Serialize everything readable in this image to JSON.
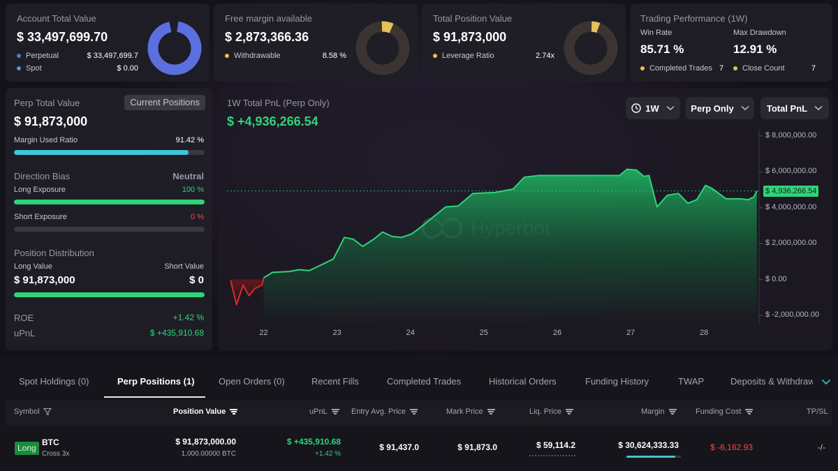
{
  "colors": {
    "accent_blue": "#5b6fe0",
    "accent_yellow": "#e5c15a",
    "green": "#2fd47a",
    "red": "#ff4545",
    "cyan": "#3ec6d6"
  },
  "account": {
    "title": "Account Total Value",
    "value": "$ 33,497,699.70",
    "perp_label": "Perpetual",
    "perp_value": "$ 33,497,699.7",
    "spot_label": "Spot",
    "spot_value": "$ 0.00"
  },
  "margin": {
    "title": "Free margin available",
    "value": "$ 2,873,366.36",
    "withdrawable_label": "Withdrawable",
    "withdrawable_value": "8.58 %"
  },
  "position": {
    "title": "Total Position Value",
    "value": "$ 91,873,000",
    "leverage_label": "Leverage Ratio",
    "leverage_value": "2.74x"
  },
  "performance": {
    "title": "Trading Performance (1W)",
    "win_rate_label": "Win Rate",
    "win_rate": "85.71 %",
    "drawdown_label": "Max Drawdown",
    "drawdown": "12.91 %",
    "completed_label": "Completed Trades",
    "completed": "7",
    "close_label": "Close Count",
    "close": "7"
  },
  "perp": {
    "title": "Perp Total Value",
    "button": "Current Positions",
    "value": "$ 91,873,000",
    "margin_used_label": "Margin Used Ratio",
    "margin_used": "91.42 %",
    "margin_used_pct": 91.42,
    "direction_label": "Direction Bias",
    "direction": "Neutral",
    "long_label": "Long Exposure",
    "long": "100 %",
    "long_pct": 100,
    "short_label": "Short Exposure",
    "short": "0 %",
    "short_pct": 0,
    "dist_label": "Position Distribution",
    "long_value_label": "Long Value",
    "short_value_label": "Short Value",
    "long_value": "$ 91,873,000",
    "short_value": "$ 0",
    "dist_long_pct": 100,
    "roe_label": "ROE",
    "roe": "+1.42 %",
    "upnl_label": "uPnL",
    "upnl": "$ +435,910.68"
  },
  "pnl": {
    "title": "1W Total PnL (Perp Only)",
    "value": "$ +4,936,266.54",
    "filter_period": "1W",
    "filter_scope": "Perp Only",
    "filter_metric": "Total PnL",
    "watermark": "Hyperbot",
    "current_label": "$ 4,936,266.54"
  },
  "chart_data": {
    "type": "area",
    "xlim": [
      21.5,
      28.75
    ],
    "ylim": [
      -2500000,
      8500000
    ],
    "yticks": [
      -2000000,
      0,
      2000000,
      4000000,
      6000000,
      8000000
    ],
    "ytick_labels": [
      "$ -2,000,000.00",
      "$ 0.00",
      "$ 2,000,000.00",
      "$ 4,000,000.00",
      "$ 6,000,000.00",
      "$ 8,000,000.00"
    ],
    "xticks": [
      22,
      23,
      24,
      25,
      26,
      27,
      28
    ],
    "xtick_labels": [
      "22",
      "23",
      "24",
      "25",
      "26",
      "27",
      "28"
    ],
    "current_value": 4936266.54,
    "points": [
      [
        21.55,
        -50000
      ],
      [
        21.63,
        -1400000
      ],
      [
        21.72,
        -300000
      ],
      [
        21.8,
        -900000
      ],
      [
        21.88,
        -500000
      ],
      [
        21.98,
        -300000
      ],
      [
        22.0,
        100000
      ],
      [
        22.12,
        400000
      ],
      [
        22.35,
        450000
      ],
      [
        22.48,
        550000
      ],
      [
        22.62,
        500000
      ],
      [
        22.75,
        750000
      ],
      [
        22.95,
        1150000
      ],
      [
        23.1,
        2350000
      ],
      [
        23.22,
        2250000
      ],
      [
        23.35,
        1850000
      ],
      [
        23.5,
        2250000
      ],
      [
        23.62,
        2650000
      ],
      [
        23.75,
        2400000
      ],
      [
        23.88,
        2350000
      ],
      [
        24.02,
        2550000
      ],
      [
        24.15,
        2950000
      ],
      [
        24.3,
        3450000
      ],
      [
        24.48,
        4050000
      ],
      [
        24.65,
        4100000
      ],
      [
        24.85,
        4800000
      ],
      [
        25.15,
        4850000
      ],
      [
        25.4,
        5050000
      ],
      [
        25.55,
        5700000
      ],
      [
        25.75,
        5800000
      ],
      [
        26.3,
        5800000
      ],
      [
        26.85,
        5800000
      ],
      [
        26.95,
        6150000
      ],
      [
        27.08,
        6100000
      ],
      [
        27.18,
        5750000
      ],
      [
        27.25,
        5800000
      ],
      [
        27.36,
        4050000
      ],
      [
        27.5,
        4700000
      ],
      [
        27.65,
        4800000
      ],
      [
        27.78,
        4250000
      ],
      [
        27.9,
        4450000
      ],
      [
        28.02,
        5250000
      ],
      [
        28.12,
        5050000
      ],
      [
        28.3,
        4500000
      ],
      [
        28.5,
        4500000
      ],
      [
        28.6,
        4450000
      ],
      [
        28.68,
        4600000
      ],
      [
        28.72,
        4936266
      ]
    ]
  },
  "tabs": [
    "Spot Holdings (0)",
    "Perp Positions (1)",
    "Open Orders (0)",
    "Recent Fills",
    "Completed Trades",
    "Historical Orders",
    "Funding History",
    "TWAP",
    "Deposits & Withdraw"
  ],
  "table": {
    "headers": {
      "symbol": "Symbol",
      "position_value": "Position Value",
      "upnl": "uPnL",
      "entry": "Entry Avg. Price",
      "mark": "Mark Price",
      "liq": "Liq. Price",
      "margin": "Margin",
      "funding": "Funding Cost",
      "tpsl": "TP/SL"
    },
    "row": {
      "side": "Long",
      "symbol": "BTC",
      "mode": "Cross 3x",
      "position_value": "$ 91,873,000.00",
      "position_size": "1,000.00000 BTC",
      "upnl": "$ +435,910.68",
      "upnl_pct": "+1.42 %",
      "entry": "$ 91,437.0",
      "mark": "$ 91,873.0",
      "liq": "$ 59,114.2",
      "margin": "$ 30,624,333.33",
      "funding": "$ -6,162.93",
      "tpsl": "-/-"
    }
  }
}
